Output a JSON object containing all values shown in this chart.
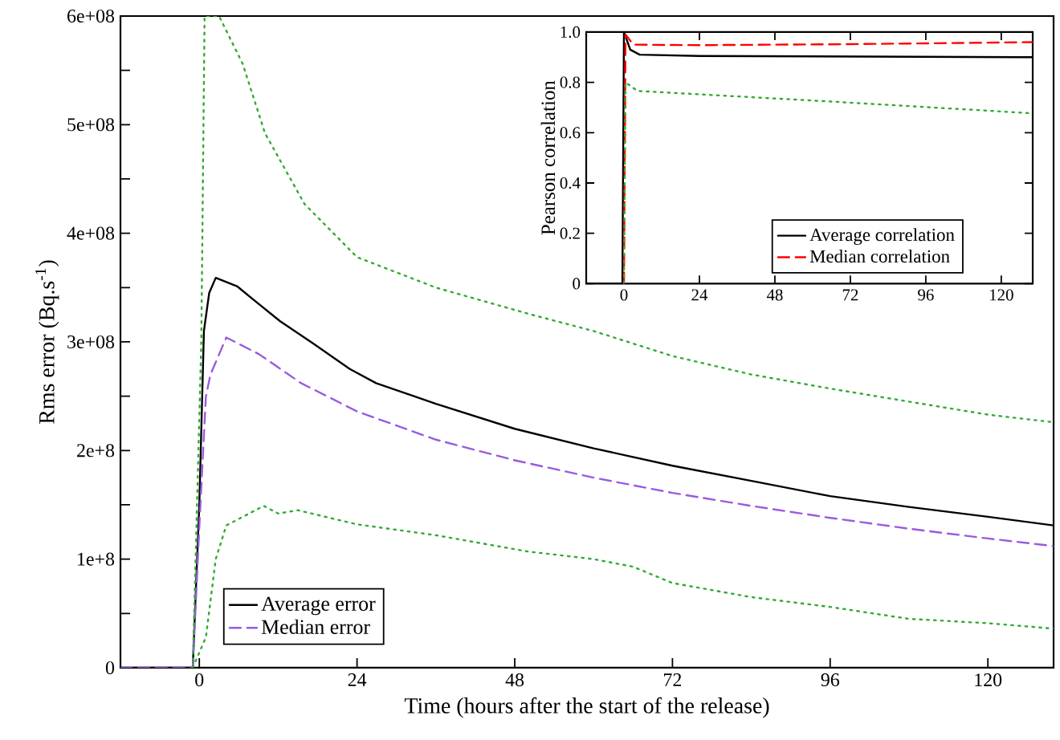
{
  "chart_data": [
    {
      "type": "line",
      "xlabel": "Time (hours after the start of the release)",
      "ylabel": "Rms error (Bq.s$^{-1}$)",
      "xlim": [
        -12,
        130
      ],
      "ylim": [
        0,
        600000000.0
      ],
      "xticks": [
        0,
        24,
        48,
        72,
        96,
        120
      ],
      "yticks": [
        0,
        {
          "value": 50000000.0,
          "label": null
        },
        {
          "value": 100000000.0,
          "label": "1e+8"
        },
        {
          "value": 150000000.0,
          "label": null
        },
        {
          "value": 200000000.0,
          "label": "2e+8"
        },
        {
          "value": 250000000.0,
          "label": null
        },
        {
          "value": 300000000.0,
          "label": "3e+08"
        },
        {
          "value": 350000000.0,
          "label": null
        },
        {
          "value": 400000000.0,
          "label": "4e+08"
        },
        {
          "value": 450000000.0,
          "label": null
        },
        {
          "value": 500000000.0,
          "label": "5e+08"
        },
        {
          "value": 550000000.0,
          "label": null
        },
        {
          "value": 600000000.0,
          "label": "6e+08"
        }
      ],
      "legend": "bottom left",
      "marker": "none",
      "series": [
        {
          "name": "Average error",
          "color": "#000000",
          "line_style": "solid",
          "x": [
            -12,
            -1,
            0,
            0.7,
            1.5,
            2.5,
            5.8,
            8.2,
            12.3,
            17.2,
            22.9,
            26.9,
            36,
            48,
            60,
            72,
            84,
            96,
            108,
            120,
            130
          ],
          "values": [
            0,
            0,
            150000000.0,
            310000000.0,
            345000000.0,
            359000000.0,
            351000000.0,
            339000000.0,
            319000000.0,
            299000000.0,
            275000000.0,
            262000000.0,
            243000000.0,
            220000000.0,
            202000000.0,
            186000000.0,
            172000000.0,
            158000000.0,
            148000000.0,
            139000000.0,
            131000000.0
          ]
        },
        {
          "name": "Median error",
          "color": "#9a5ae0",
          "line_style": "dashed",
          "x": [
            -12,
            -1,
            0,
            1,
            1.7,
            4.1,
            9,
            15.5,
            24,
            36,
            48,
            60,
            72,
            84,
            96,
            108,
            120,
            130
          ],
          "values": [
            0,
            0,
            130000000.0,
            250000000.0,
            270000000.0,
            304000000.0,
            289000000.0,
            262000000.0,
            236000000.0,
            210000000.0,
            191000000.0,
            175000000.0,
            161000000.0,
            149000000.0,
            138000000.0,
            128000000.0,
            119000000.0,
            112000000.0
          ]
        },
        {
          "color": "#33aa33",
          "line_style": "dotted",
          "x": [
            -1,
            0.3,
            0.8,
            3,
            6.6,
            10,
            16,
            24,
            36,
            50,
            60,
            72,
            84,
            96,
            108,
            120,
            130
          ],
          "values": [
            0,
            300000000.0,
            600000000.0,
            600000000.0,
            556000000.0,
            492000000.0,
            427000000.0,
            378000000.0,
            350000000.0,
            326000000.0,
            310000000.0,
            287000000.0,
            270000000.0,
            257000000.0,
            245000000.0,
            233000000.0,
            226000000.0
          ]
        },
        {
          "color": "#33aa33",
          "line_style": "dotted",
          "x": [
            -1,
            1,
            2.5,
            4.1,
            9.8,
            12,
            15,
            24,
            36,
            50,
            60,
            66,
            72,
            84,
            96,
            108,
            120,
            130
          ],
          "values": [
            0,
            28000000.0,
            100000000.0,
            131000000.0,
            149000000.0,
            142000000.0,
            145000000.0,
            132000000.0,
            122000000.0,
            107000000.0,
            100000000.0,
            93000000.0,
            78000000.0,
            65000000.0,
            56000000.0,
            45000000.0,
            41000000.0,
            36000000.0
          ]
        }
      ]
    },
    {
      "type": "line",
      "ylabel": "Pearson correlation",
      "xlim": [
        -12,
        130
      ],
      "ylim": [
        0,
        1
      ],
      "xticks": [
        0,
        24,
        48,
        72,
        96,
        120
      ],
      "yticks": [
        0,
        0.2,
        0.4,
        0.6,
        0.8,
        {
          "value": 1,
          "label": "1.0"
        }
      ],
      "legend": "bottom right",
      "marker": "none",
      "series": [
        {
          "name": "Average correlation",
          "color": "#000000",
          "line_style": "solid",
          "x": [
            -12,
            -0.5,
            0,
            2,
            5,
            24,
            130
          ],
          "values": [
            0,
            0,
            1.0,
            0.93,
            0.91,
            0.905,
            0.9
          ]
        },
        {
          "name": "Median correlation",
          "color": "#ff0000",
          "line_style": "dashed",
          "x": [
            0,
            0.5,
            3,
            24,
            72,
            130
          ],
          "values": [
            0,
            0.99,
            0.95,
            0.948,
            0.952,
            0.96
          ]
        },
        {
          "color": "#33aa33",
          "line_style": "dotted",
          "x": [
            0,
            0.5,
            4.3,
            65.6,
            130
          ],
          "values": [
            0,
            0.8,
            0.766,
            0.724,
            0.677
          ]
        }
      ]
    }
  ]
}
